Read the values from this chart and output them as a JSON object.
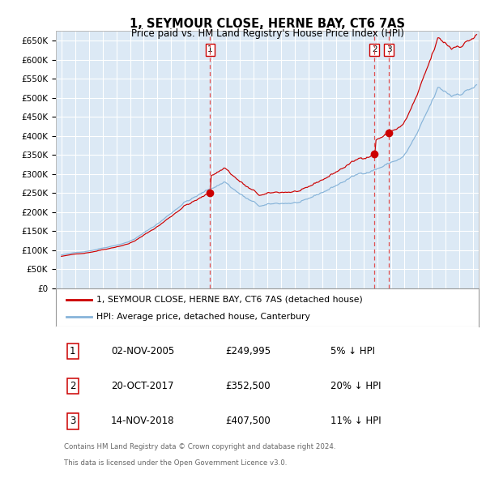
{
  "title": "1, SEYMOUR CLOSE, HERNE BAY, CT6 7AS",
  "subtitle": "Price paid vs. HM Land Registry's House Price Index (HPI)",
  "legend_line1": "1, SEYMOUR CLOSE, HERNE BAY, CT6 7AS (detached house)",
  "legend_line2": "HPI: Average price, detached house, Canterbury",
  "transactions": [
    {
      "num": 1,
      "date": "02-NOV-2005",
      "price": 249995,
      "pct": "5%",
      "year": 2005.84
    },
    {
      "num": 2,
      "date": "20-OCT-2017",
      "price": 352500,
      "pct": "20%",
      "year": 2017.8
    },
    {
      "num": 3,
      "date": "14-NOV-2018",
      "price": 407500,
      "pct": "11%",
      "year": 2018.87
    }
  ],
  "footer_line1": "Contains HM Land Registry data © Crown copyright and database right 2024.",
  "footer_line2": "This data is licensed under the Open Government Licence v3.0.",
  "ylim": [
    0,
    675000
  ],
  "yticks": [
    0,
    50000,
    100000,
    150000,
    200000,
    250000,
    300000,
    350000,
    400000,
    450000,
    500000,
    550000,
    600000,
    650000
  ],
  "plot_bg": "#dce9f5",
  "grid_color": "#ffffff",
  "red_line_color": "#cc0000",
  "blue_line_color": "#87b4d9",
  "dashed_line_color": "#e05050"
}
